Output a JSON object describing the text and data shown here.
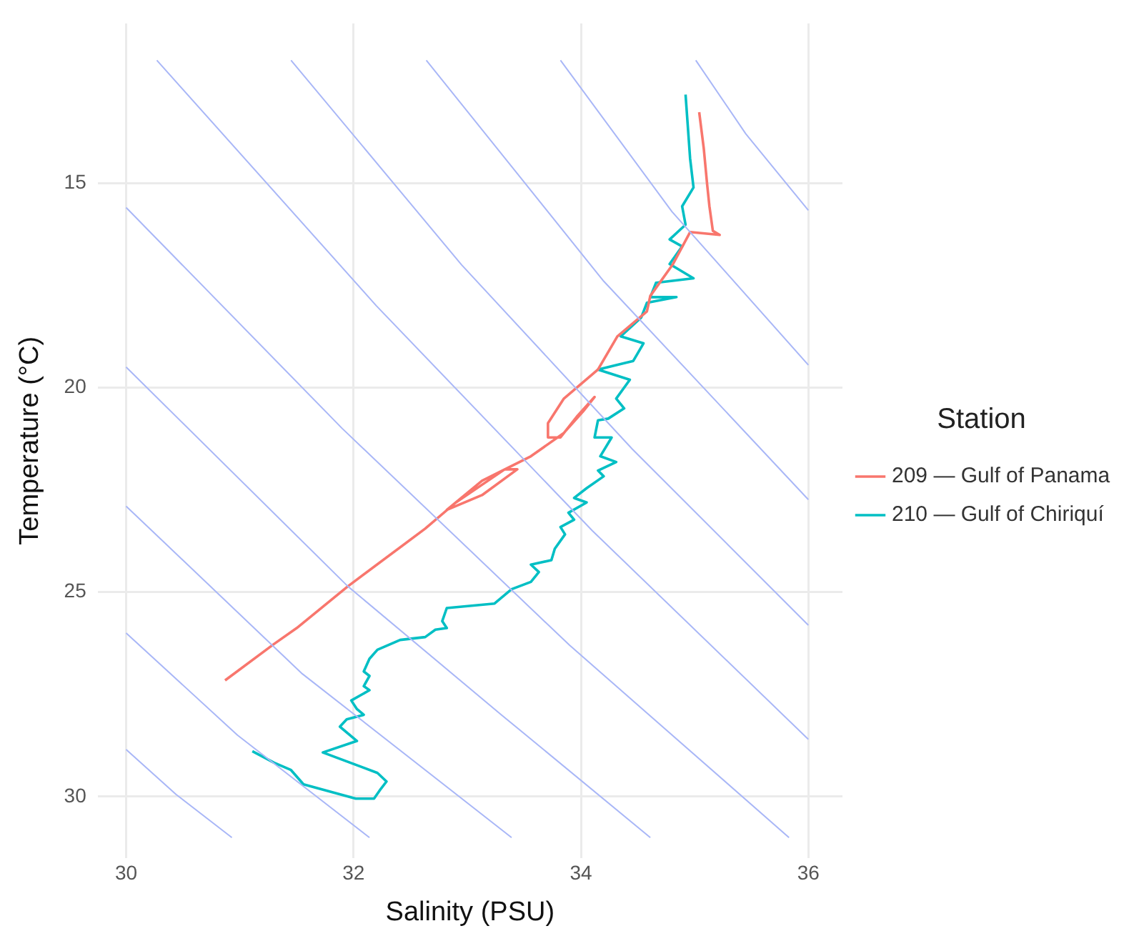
{
  "chart_data": {
    "type": "line",
    "xlabel": "Salinity (PSU)",
    "ylabel": "Temperature (°C)",
    "legend_title": "Station",
    "legend": "right",
    "grid": true,
    "marker": "none",
    "line_style": "solid",
    "xlim": [
      29.75,
      36.3
    ],
    "xticks": [
      30,
      32,
      34,
      36
    ],
    "ylim": [
      31.5,
      11.1
    ],
    "yticks": [
      15,
      20,
      25,
      30
    ],
    "series": [
      {
        "color": "#a9b7f7",
        "x": [
          30,
          30.44,
          30.93
        ],
        "values": [
          28.85,
          29.95,
          31.0
        ]
      },
      {
        "color": "#a9b7f7",
        "x": [
          30,
          30.98,
          32.14
        ],
        "values": [
          26.0,
          28.5,
          31.0
        ]
      },
      {
        "color": "#a9b7f7",
        "x": [
          30,
          31.55,
          33.39
        ],
        "values": [
          22.9,
          27.0,
          31.0
        ]
      },
      {
        "color": "#a9b7f7",
        "x": [
          30,
          31.95,
          33.3,
          34.61
        ],
        "values": [
          19.5,
          24.86,
          28.0,
          31.0
        ]
      },
      {
        "color": "#a9b7f7",
        "x": [
          30,
          31.9,
          33.9,
          35.83
        ],
        "values": [
          15.6,
          21.0,
          26.3,
          31.0
        ]
      },
      {
        "color": "#a9b7f7",
        "x": [
          30.27,
          32.2,
          34.1,
          36
        ],
        "values": [
          12.0,
          18.0,
          23.5,
          28.6
        ]
      },
      {
        "color": "#a9b7f7",
        "x": [
          31.45,
          32.95,
          34.45,
          36
        ],
        "values": [
          12.0,
          17.0,
          21.5,
          25.81
        ]
      },
      {
        "color": "#a9b7f7",
        "x": [
          32.64,
          34.2,
          36
        ],
        "values": [
          12.0,
          17.4,
          22.74
        ]
      },
      {
        "color": "#a9b7f7",
        "x": [
          33.82,
          34.8,
          36
        ],
        "values": [
          12.0,
          15.7,
          19.45
        ]
      },
      {
        "color": "#a9b7f7",
        "x": [
          35.01,
          35.45,
          36
        ],
        "values": [
          12.0,
          13.8,
          15.67
        ]
      },
      {
        "name": "209 — Gulf of Panama",
        "color": "#f8766d",
        "x": [
          35.04,
          35.08,
          35.11,
          35.13,
          35.16,
          35.22,
          34.96,
          34.81,
          34.61,
          34.58,
          34.32,
          34.15,
          33.85,
          33.71,
          33.71,
          33.82,
          33.97,
          34.12,
          34.02,
          33.85,
          33.56,
          33.13,
          32.82,
          33.13,
          33.44,
          33.33,
          32.9,
          32.63,
          31.95,
          31.5,
          31.3,
          30.87
        ],
        "values": [
          13.27,
          14.15,
          15.04,
          15.57,
          16.17,
          16.27,
          16.2,
          16.98,
          17.76,
          18.14,
          18.75,
          19.56,
          20.27,
          20.87,
          21.22,
          21.22,
          20.69,
          20.23,
          20.58,
          21.11,
          21.68,
          22.28,
          22.99,
          22.63,
          22.0,
          22.0,
          22.81,
          23.45,
          24.86,
          25.88,
          26.27,
          27.16
        ]
      },
      {
        "name": "210 — Gulf of Chiriquí",
        "color": "#00bfc4",
        "x": [
          34.92,
          34.96,
          34.99,
          34.89,
          34.92,
          34.78,
          34.89,
          34.78,
          34.99,
          34.66,
          34.61,
          34.84,
          34.58,
          34.53,
          34.35,
          34.55,
          34.46,
          34.15,
          34.43,
          34.31,
          34.38,
          34.24,
          34.15,
          34.12,
          34.27,
          34.17,
          34.31,
          34.15,
          34.2,
          34.05,
          33.94,
          34.05,
          33.89,
          33.94,
          33.82,
          33.86,
          33.77,
          33.74,
          33.56,
          33.63,
          33.56,
          33.39,
          33.24,
          32.82,
          32.78,
          32.82,
          32.72,
          32.63,
          32.41,
          32.21,
          32.14,
          32.09,
          32.14,
          32.09,
          32.14,
          31.98,
          32.03,
          32.09,
          31.94,
          31.88,
          32.03,
          31.73,
          32.21,
          32.29,
          32.24,
          32.18,
          32.02,
          31.56,
          31.45,
          31.3,
          31.11
        ],
        "values": [
          12.84,
          14.4,
          15.11,
          15.57,
          16.02,
          16.38,
          16.55,
          16.98,
          17.33,
          17.44,
          17.79,
          17.79,
          17.93,
          18.29,
          18.75,
          18.92,
          19.35,
          19.56,
          19.81,
          20.27,
          20.51,
          20.76,
          20.8,
          21.22,
          21.22,
          21.68,
          21.82,
          22.03,
          22.17,
          22.46,
          22.7,
          22.81,
          23.06,
          23.23,
          23.41,
          23.59,
          23.94,
          24.22,
          24.33,
          24.51,
          24.75,
          24.93,
          25.28,
          25.39,
          25.71,
          25.88,
          25.92,
          26.1,
          26.17,
          26.41,
          26.63,
          26.94,
          27.05,
          27.3,
          27.4,
          27.65,
          27.86,
          28.0,
          28.11,
          28.29,
          28.64,
          28.92,
          29.42,
          29.63,
          29.81,
          30.05,
          30.05,
          29.7,
          29.35,
          29.17,
          28.89
        ]
      }
    ]
  }
}
